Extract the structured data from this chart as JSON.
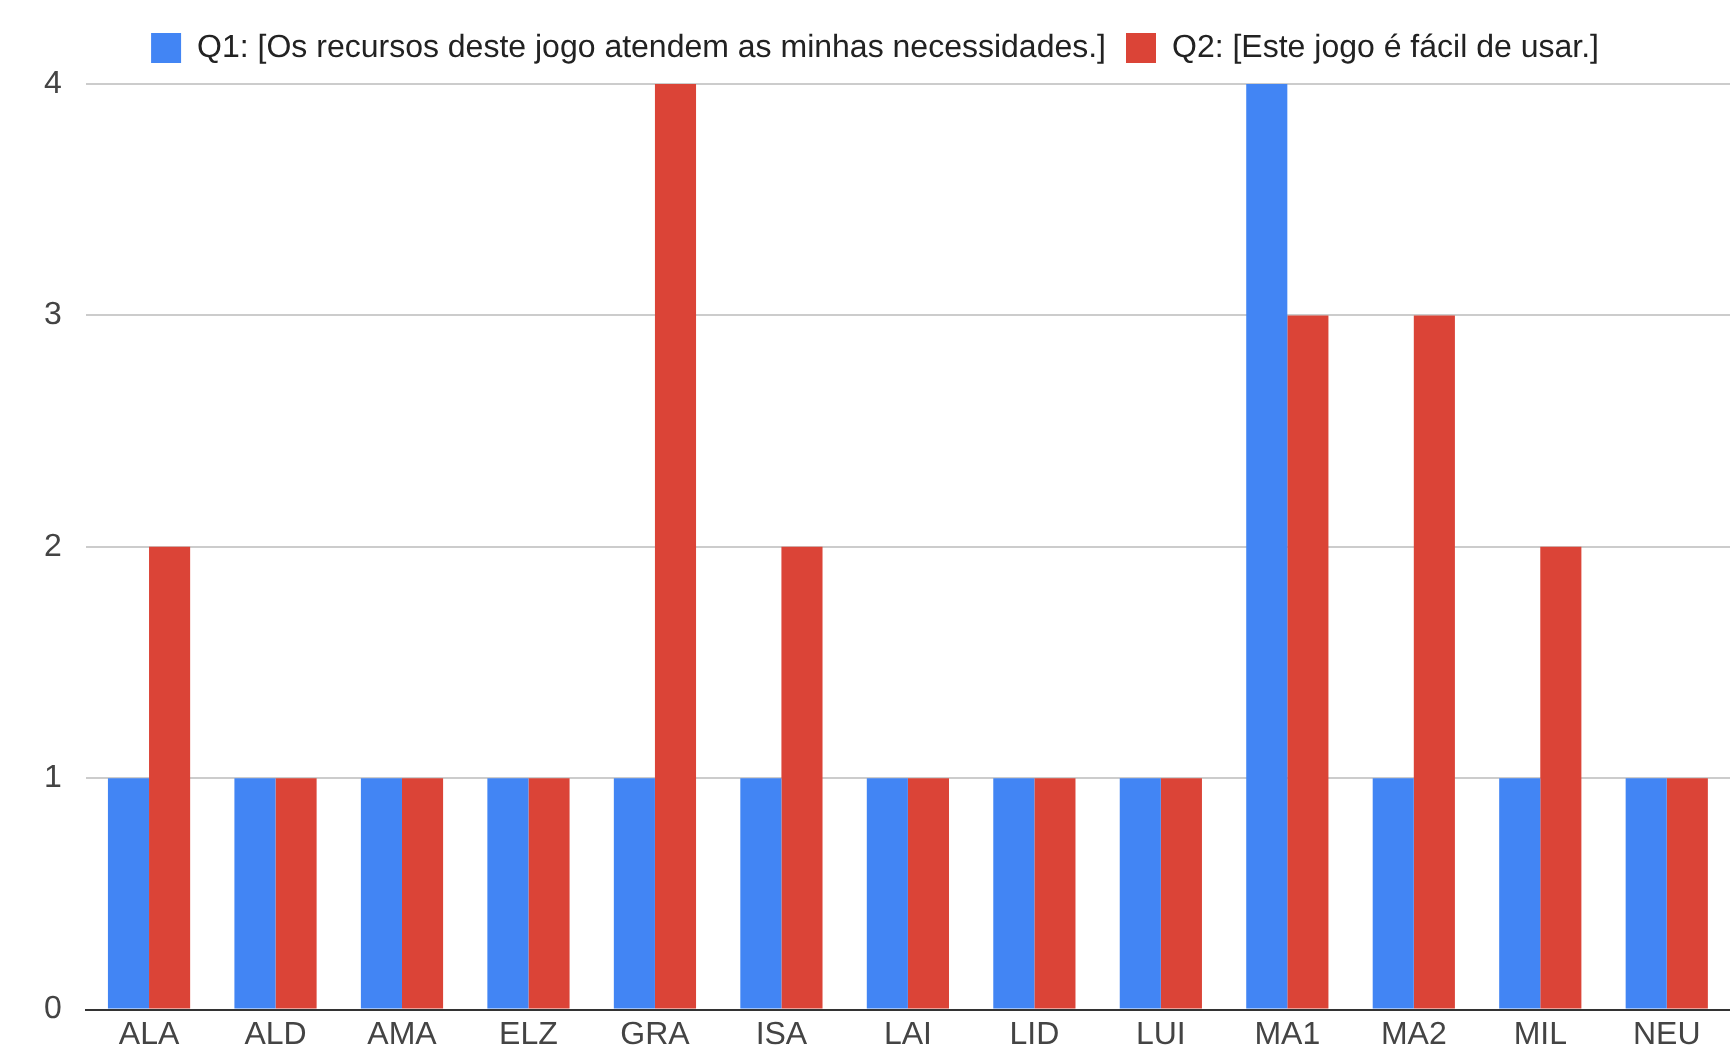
{
  "chart_data": {
    "type": "bar",
    "categories": [
      "ALA",
      "ALD",
      "AMA",
      "ELZ",
      "GRA",
      "ISA",
      "LAI",
      "LID",
      "LUI",
      "MA1",
      "MA2",
      "MIL",
      "NEU"
    ],
    "series": [
      {
        "name": "Q1: [Os recursos deste jogo atendem as minhas necessidades.]",
        "color": "#4285f4",
        "values": [
          1,
          1,
          1,
          1,
          1,
          1,
          1,
          1,
          1,
          4,
          1,
          1,
          1
        ]
      },
      {
        "name": "Q2: [Este jogo é fácil de usar.]",
        "color": "#db4437",
        "values": [
          2,
          1,
          1,
          1,
          4,
          2,
          1,
          1,
          1,
          3,
          3,
          2,
          1
        ]
      }
    ],
    "ylim": [
      0,
      4
    ],
    "yticks": [
      0,
      1,
      2,
      3,
      4
    ],
    "grid": "y",
    "legend": "top"
  }
}
